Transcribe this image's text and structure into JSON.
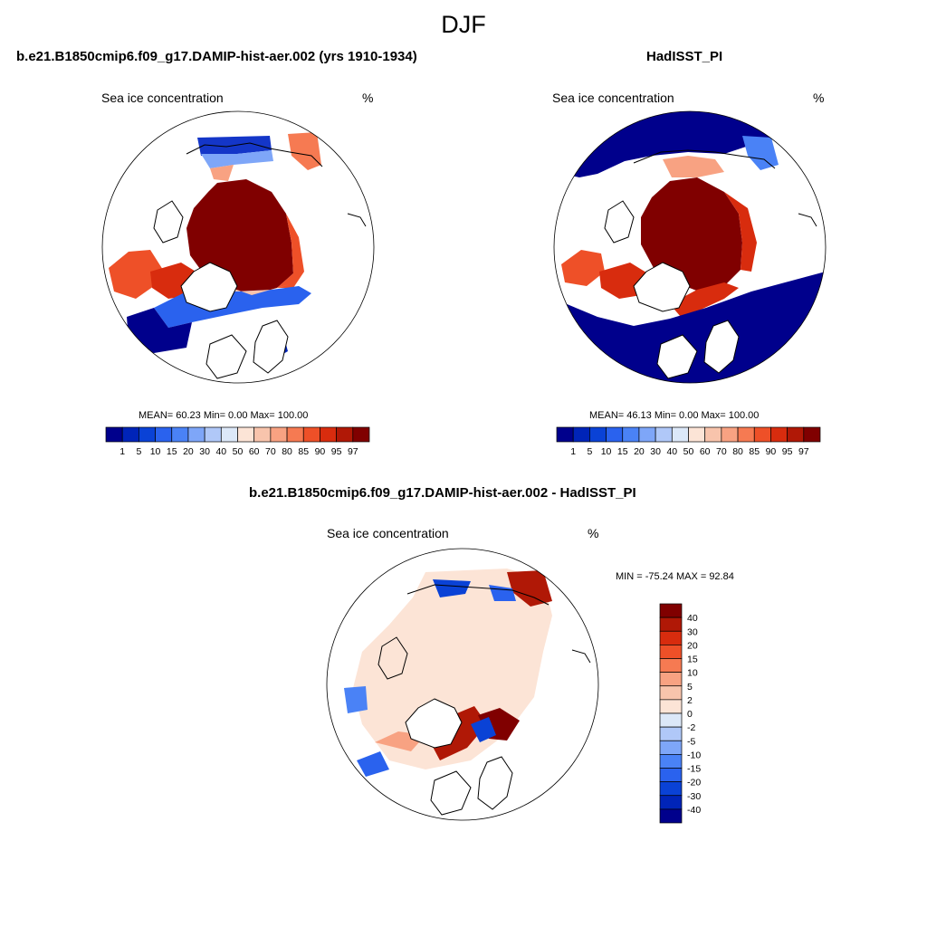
{
  "figure": {
    "season": "DJF",
    "colors": {
      "background": "#ffffff",
      "land_outline": "#000000",
      "land_fill": "#ffffff"
    }
  },
  "panels": {
    "model": {
      "title": "b.e21.B1850cmip6.f09_g17.DAMIP-hist-aer.002 (yrs 1910-1934)",
      "left_label": "Sea ice concentration",
      "right_label": "%",
      "stats": {
        "mean": "60.23",
        "min": "0.00",
        "max": "100.00"
      },
      "stats_text": "MEAN=  60.23  Min=   0.00  Max= 100.00"
    },
    "obs": {
      "title": "HadISST_PI",
      "left_label": "Sea ice concentration",
      "right_label": "%",
      "stats": {
        "mean": "46.13",
        "min": "0.00",
        "max": "100.00"
      },
      "stats_text": "MEAN=  46.13  Min=   0.00  Max= 100.00"
    },
    "diff": {
      "title": "b.e21.B1850cmip6.f09_g17.DAMIP-hist-aer.002 - HadISST_PI",
      "left_label": "Sea ice concentration",
      "right_label": "%",
      "minmax_text": "MIN = -75.24 MAX =  92.84",
      "stats": {
        "min": "-75.24",
        "max": "92.84"
      }
    }
  },
  "chart_data": [
    {
      "type": "heatmap",
      "projection": "north-polar-stereographic",
      "title": "b.e21.B1850cmip6.f09_g17.DAMIP-hist-aer.002 (yrs 1910-1934)",
      "variable": "Sea ice concentration",
      "units": "%",
      "colorbar": {
        "orientation": "horizontal",
        "levels": [
          1,
          5,
          10,
          15,
          20,
          30,
          40,
          50,
          60,
          70,
          80,
          85,
          90,
          95,
          97
        ],
        "colors": [
          "#00008c",
          "#0024b8",
          "#0a42d6",
          "#2a62ee",
          "#4a82f6",
          "#7ea6f8",
          "#b0c8f8",
          "#dce8f8",
          "#fce4d6",
          "#f8c4ac",
          "#f8a282",
          "#f67a52",
          "#ee5028",
          "#d82c0e",
          "#b01806",
          "#800000"
        ]
      },
      "mean": 60.23,
      "min": 0.0,
      "max": 100.0
    },
    {
      "type": "heatmap",
      "projection": "north-polar-stereographic",
      "title": "HadISST_PI",
      "variable": "Sea ice concentration",
      "units": "%",
      "colorbar": {
        "orientation": "horizontal",
        "levels": [
          1,
          5,
          10,
          15,
          20,
          30,
          40,
          50,
          60,
          70,
          80,
          85,
          90,
          95,
          97
        ],
        "colors": [
          "#00008c",
          "#0024b8",
          "#0a42d6",
          "#2a62ee",
          "#4a82f6",
          "#7ea6f8",
          "#b0c8f8",
          "#dce8f8",
          "#fce4d6",
          "#f8c4ac",
          "#f8a282",
          "#f67a52",
          "#ee5028",
          "#d82c0e",
          "#b01806",
          "#800000"
        ]
      },
      "mean": 46.13,
      "min": 0.0,
      "max": 100.0
    },
    {
      "type": "heatmap",
      "projection": "north-polar-stereographic",
      "title": "b.e21.B1850cmip6.f09_g17.DAMIP-hist-aer.002 - HadISST_PI",
      "variable": "Sea ice concentration",
      "units": "%",
      "colorbar": {
        "orientation": "vertical",
        "levels": [
          40,
          30,
          20,
          15,
          10,
          5,
          2,
          0,
          -2,
          -5,
          -10,
          -15,
          -20,
          -30,
          -40
        ],
        "colors": [
          "#800000",
          "#b01806",
          "#d82c0e",
          "#ee5028",
          "#f67a52",
          "#f8a282",
          "#f8c4ac",
          "#fce4d6",
          "#dce8f8",
          "#b0c8f8",
          "#7ea6f8",
          "#4a82f6",
          "#2a62ee",
          "#0a42d6",
          "#0024b8",
          "#00008c"
        ]
      },
      "min": -75.24,
      "max": 92.84
    }
  ]
}
